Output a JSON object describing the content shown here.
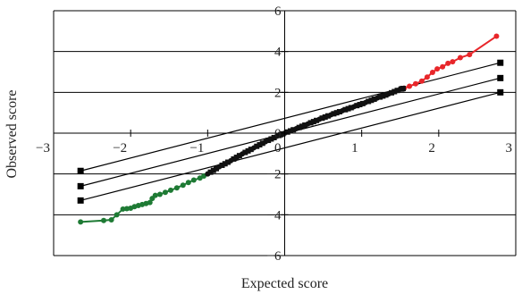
{
  "chart_data": {
    "type": "scatter",
    "title": "",
    "xlabel": "Expected score",
    "ylabel": "Observed score",
    "xlim": [
      -3,
      3
    ],
    "ylim": [
      -6,
      6
    ],
    "x_ticks": [
      -3,
      -2,
      -1,
      0,
      1,
      2,
      3
    ],
    "y_ticks": [
      -6,
      -4,
      -2,
      0,
      2,
      4,
      6
    ],
    "x_tick_labels": [
      "−3",
      "−2",
      "−1",
      "0",
      "1",
      "2",
      "3"
    ],
    "y_tick_labels": [
      "−6",
      "−4",
      "−2",
      "0",
      "2",
      "4",
      "6"
    ],
    "grid": "horizontal",
    "legend": "none",
    "colors": {
      "low": "#1e7a34",
      "middle": "#111111",
      "high": "#e8262a",
      "reference": "#000000",
      "grid": "#000000"
    },
    "series": [
      {
        "color_key": "low",
        "points": [
          [
            -2.65,
            -4.35
          ],
          [
            -2.35,
            -4.28
          ],
          [
            -2.25,
            -4.25
          ],
          [
            -2.18,
            -4.0
          ],
          [
            -2.1,
            -3.72
          ],
          [
            -2.05,
            -3.7
          ],
          [
            -2.0,
            -3.68
          ],
          [
            -1.95,
            -3.6
          ],
          [
            -1.9,
            -3.55
          ],
          [
            -1.85,
            -3.5
          ],
          [
            -1.8,
            -3.45
          ],
          [
            -1.75,
            -3.4
          ],
          [
            -1.72,
            -3.2
          ],
          [
            -1.68,
            -3.05
          ],
          [
            -1.62,
            -3.0
          ],
          [
            -1.55,
            -2.9
          ],
          [
            -1.48,
            -2.8
          ],
          [
            -1.4,
            -2.68
          ],
          [
            -1.32,
            -2.55
          ],
          [
            -1.25,
            -2.42
          ],
          [
            -1.18,
            -2.3
          ],
          [
            -1.1,
            -2.2
          ],
          [
            -1.05,
            -2.1
          ],
          [
            -1.0,
            -2.0
          ]
        ]
      },
      {
        "color_key": "middle",
        "points": [
          [
            -1.0,
            -2.0
          ],
          [
            -0.85,
            -1.65
          ],
          [
            -0.7,
            -1.35
          ],
          [
            -0.55,
            -1.02
          ],
          [
            -0.4,
            -0.72
          ],
          [
            -0.25,
            -0.42
          ],
          [
            -0.1,
            -0.15
          ],
          [
            0.0,
            0.0
          ],
          [
            0.15,
            0.22
          ],
          [
            0.3,
            0.45
          ],
          [
            0.45,
            0.68
          ],
          [
            0.6,
            0.9
          ],
          [
            0.75,
            1.1
          ],
          [
            0.9,
            1.3
          ],
          [
            1.05,
            1.5
          ],
          [
            1.2,
            1.72
          ],
          [
            1.35,
            1.92
          ],
          [
            1.5,
            2.15
          ],
          [
            1.55,
            2.2
          ]
        ]
      },
      {
        "color_key": "high",
        "points": [
          [
            1.55,
            2.2
          ],
          [
            1.62,
            2.3
          ],
          [
            1.7,
            2.42
          ],
          [
            1.78,
            2.55
          ],
          [
            1.85,
            2.75
          ],
          [
            1.92,
            2.98
          ],
          [
            1.98,
            3.15
          ],
          [
            2.05,
            3.25
          ],
          [
            2.12,
            3.42
          ],
          [
            2.18,
            3.5
          ],
          [
            2.28,
            3.7
          ],
          [
            2.4,
            3.85
          ],
          [
            2.75,
            4.75
          ]
        ]
      }
    ],
    "reference_lines": [
      {
        "points": [
          [
            -2.65,
            -1.85
          ],
          [
            2.8,
            3.45
          ]
        ]
      },
      {
        "points": [
          [
            -2.65,
            -2.6
          ],
          [
            2.8,
            2.7
          ]
        ]
      },
      {
        "points": [
          [
            -2.65,
            -3.3
          ],
          [
            2.8,
            2.0
          ]
        ]
      }
    ]
  }
}
